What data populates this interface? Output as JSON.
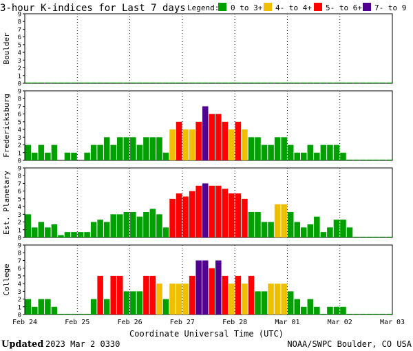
{
  "header": {
    "title": "3-hour K-indices for Last 7 days",
    "legend_label": "Legend:"
  },
  "legend": [
    {
      "label": "0 to 3+",
      "color": "#00a000"
    },
    {
      "label": "4- to 4+",
      "color": "#f0c000"
    },
    {
      "label": "5- to 6+",
      "color": "#ff0000"
    },
    {
      "label": "7- to 9",
      "color": "#500090"
    }
  ],
  "footer": {
    "updated_label": "Updated",
    "updated_value": "2023 Mar  2 0330",
    "credit": "NOAA/SWPC Boulder, CO USA"
  },
  "chart_data": {
    "type": "bar",
    "xlabel": "Coordinate Universal Time (UTC)",
    "x_ticks": [
      "Feb 24",
      "Feb 25",
      "Feb 26",
      "Feb 27",
      "Feb 28",
      "Mar 01",
      "Mar 02",
      "Mar 03"
    ],
    "y_ticks": [
      "0",
      "1",
      "2",
      "3",
      "4",
      "5",
      "6",
      "7",
      "8",
      "9"
    ],
    "ylim": [
      0,
      9
    ],
    "bins_per_day": 8,
    "thresholds": {
      "yellow_min": 4,
      "red_min": 5,
      "purple_min": 7
    },
    "panels": [
      {
        "name": "Boulder",
        "values": [
          0.1,
          0.1,
          0.1,
          0.1,
          0.1,
          0.1,
          0.1,
          0.1,
          0.1,
          0.1,
          0.1,
          0.1,
          0.1,
          0.1,
          0.1,
          0.1,
          0.1,
          0.1,
          0.1,
          0.1,
          0.1,
          0.1,
          0.1,
          0.1,
          0.1,
          0.1,
          0.1,
          0.1,
          0.1,
          0.1,
          0.1,
          0.1,
          0.1,
          0.1,
          0.1,
          0.1,
          0.1,
          0.1,
          0.1,
          0.1,
          0.1,
          0.1,
          0.1,
          0.1,
          0.1,
          0.1,
          0.1,
          0.1,
          0.1,
          0.1,
          0.1,
          0.1,
          0.1,
          0.1,
          0.1,
          0.1
        ]
      },
      {
        "name": "Fredericksburg",
        "values": [
          2,
          1,
          2,
          1,
          2,
          0,
          1,
          1,
          0,
          1,
          2,
          2,
          3,
          2,
          3,
          3,
          3,
          2,
          3,
          3,
          3,
          1,
          4,
          5,
          4,
          4,
          5,
          7,
          6,
          6,
          5,
          4,
          5,
          4,
          3,
          3,
          2,
          2,
          3,
          3,
          2,
          1,
          1,
          2,
          1,
          2,
          2,
          2,
          1,
          0.1,
          0.1,
          0.1,
          0.1,
          0.1,
          0.1,
          0.1
        ]
      },
      {
        "name": "Est. Planetary",
        "values": [
          3,
          1.3,
          2,
          1.3,
          1.7,
          0.3,
          0.7,
          0.7,
          0.7,
          0.7,
          2,
          2.3,
          2,
          3,
          3,
          3.3,
          3.3,
          2.7,
          3.3,
          3.7,
          3,
          1.3,
          5,
          5.7,
          5.3,
          6,
          6.7,
          7,
          6.7,
          6.7,
          6.3,
          5.7,
          5.7,
          5,
          3.3,
          3.3,
          2,
          2,
          4.3,
          4.3,
          3.3,
          2,
          1.3,
          1.7,
          2.7,
          0.7,
          1.3,
          2.3,
          2.3,
          1.3,
          0.1,
          0.1,
          0.1,
          0.1,
          0.1,
          0.1
        ]
      },
      {
        "name": "College",
        "values": [
          2,
          1,
          2,
          2,
          1,
          0.1,
          0.1,
          0.1,
          0.1,
          0.1,
          2,
          5,
          2,
          5,
          5,
          3,
          3,
          3,
          5,
          5,
          4,
          2,
          4,
          4,
          4,
          5,
          7,
          7,
          6,
          7,
          5,
          4,
          5,
          4,
          5,
          3,
          3,
          4,
          4,
          4,
          3,
          2,
          1,
          2,
          1,
          0.1,
          1,
          1,
          1,
          0.1,
          0.1,
          0.1,
          0.1,
          0.1,
          0.1,
          0.1
        ]
      }
    ]
  }
}
